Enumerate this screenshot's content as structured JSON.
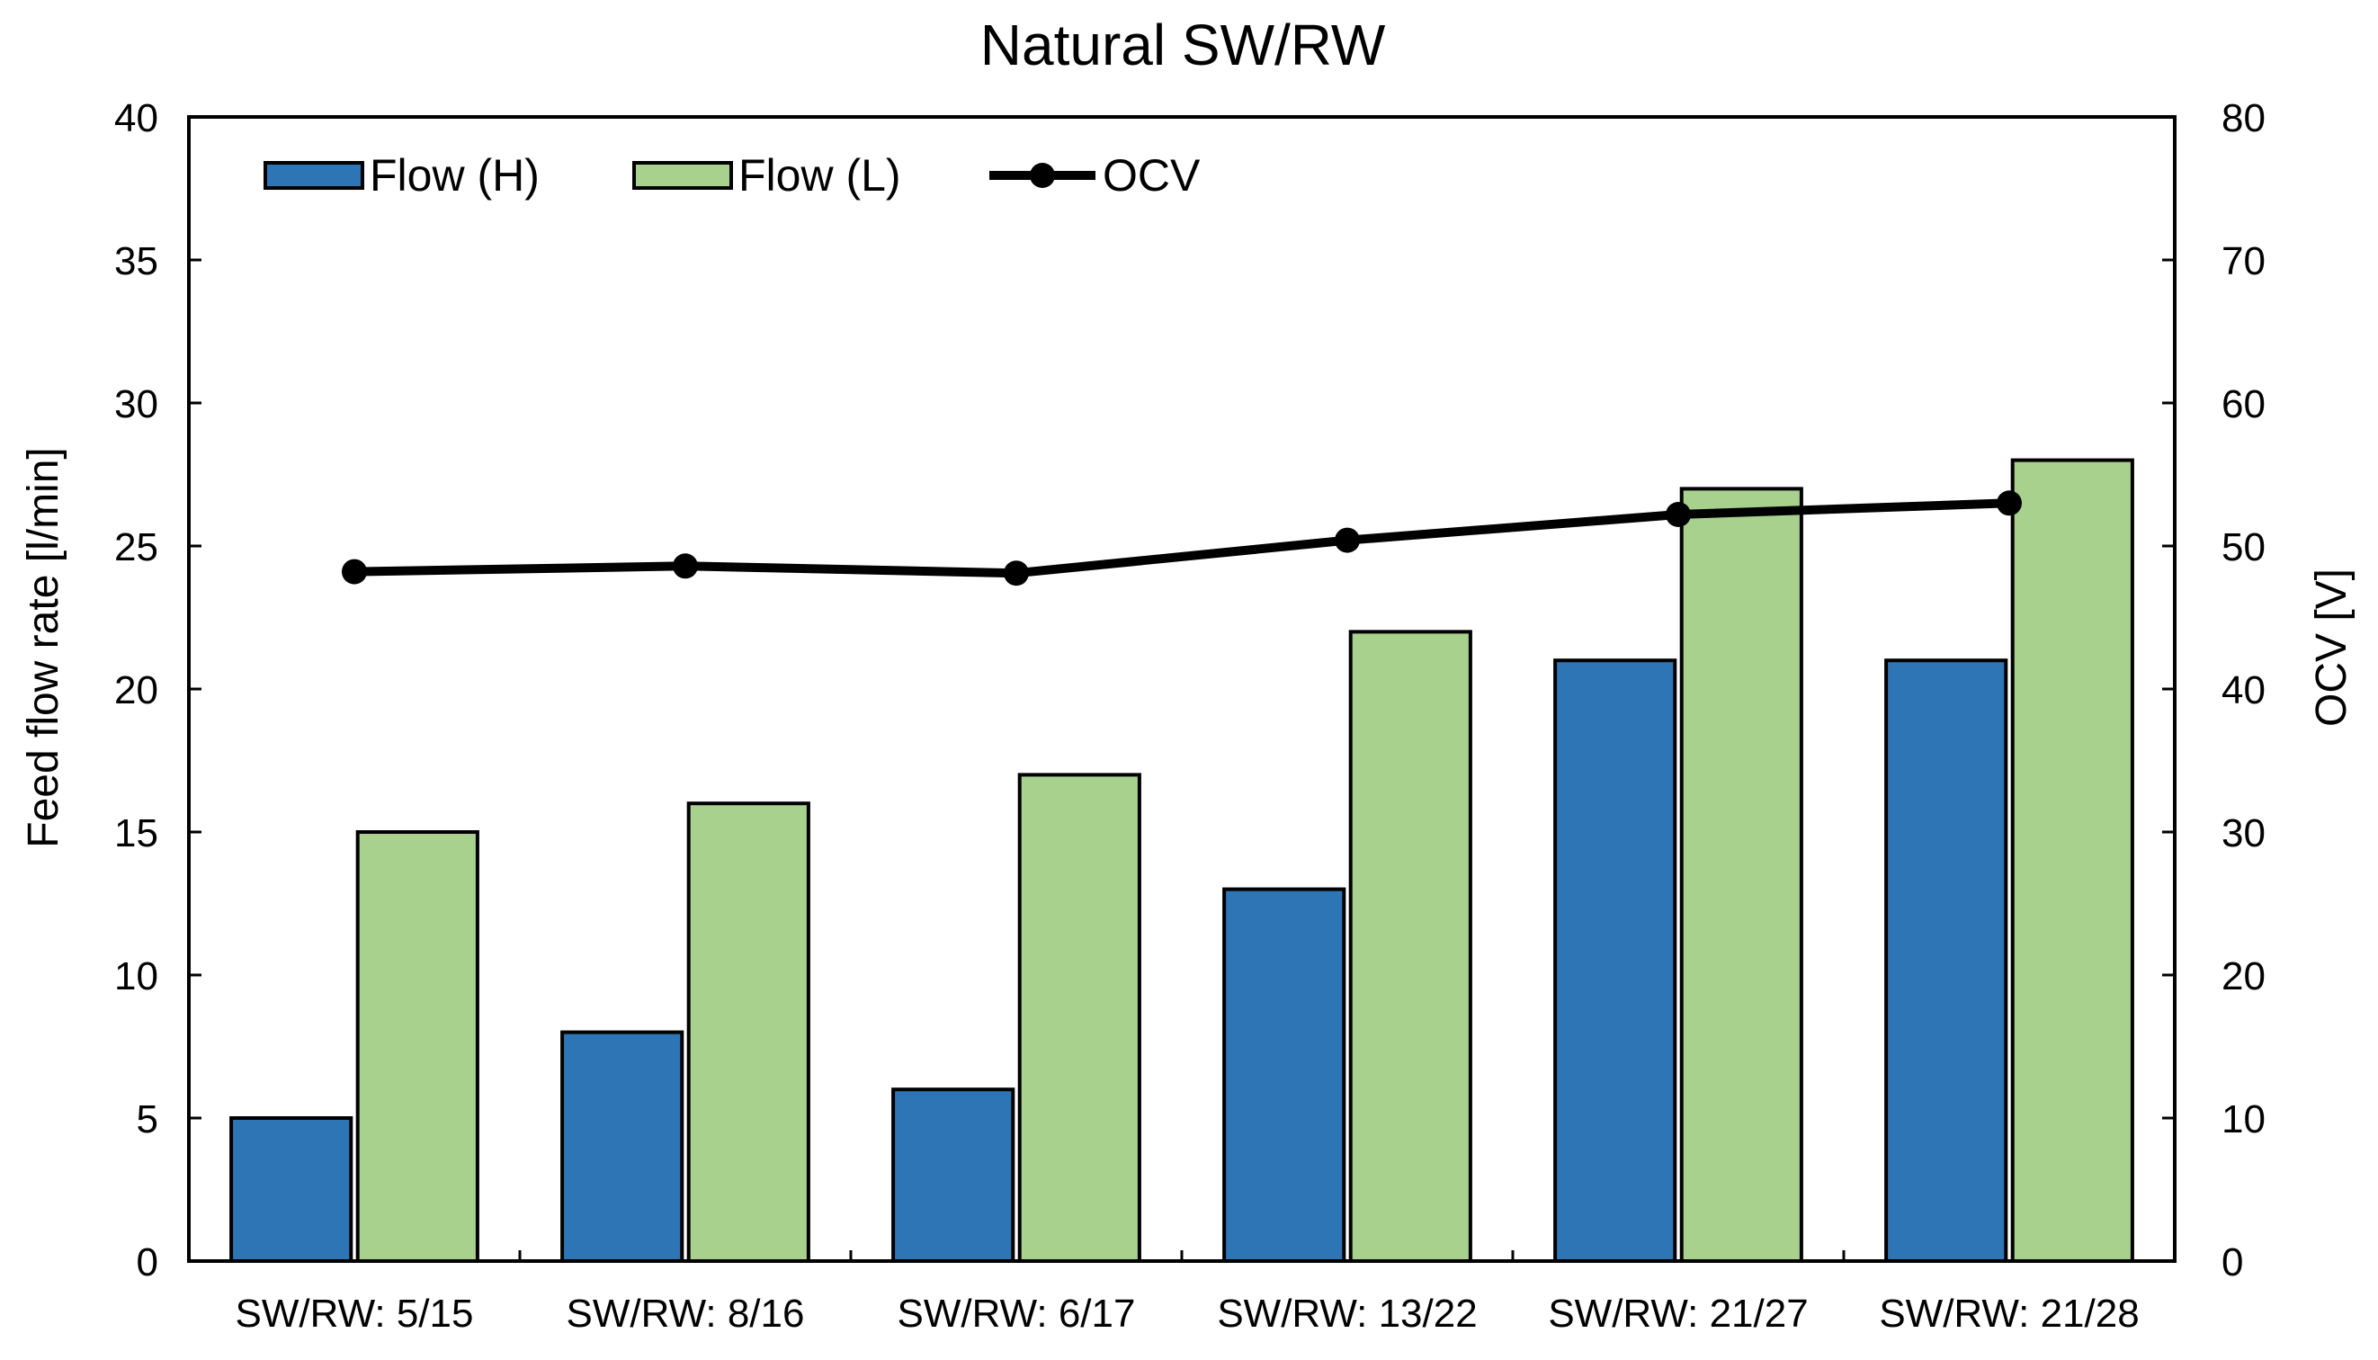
{
  "chart_data": {
    "type": "bar",
    "title": "Natural SW/RW",
    "categories": [
      "SW/RW: 5/15",
      "SW/RW: 8/16",
      "SW/RW: 6/17",
      "SW/RW: 13/22",
      "SW/RW: 21/27",
      "SW/RW: 21/28"
    ],
    "series": [
      {
        "name": "Flow (H)",
        "type": "bar",
        "axis": "left",
        "color": "#2E75B6",
        "values": [
          5,
          8,
          6,
          13,
          21,
          21
        ]
      },
      {
        "name": "Flow (L)",
        "type": "bar",
        "axis": "left",
        "color": "#A9D18E",
        "values": [
          15,
          16,
          17,
          22,
          27,
          28
        ]
      },
      {
        "name": "OCV",
        "type": "line",
        "axis": "right",
        "color": "#000000",
        "marker": "circle",
        "values": [
          48.2,
          48.6,
          48.1,
          50.4,
          52.2,
          53.0
        ]
      }
    ],
    "ylabel": "Feed flow rate [l/min]",
    "ylim": [
      0,
      40
    ],
    "yticks": [
      0,
      5,
      10,
      15,
      20,
      25,
      30,
      35,
      40
    ],
    "y2label": "OCV [V]",
    "y2lim": [
      0,
      80
    ],
    "y2ticks": [
      0,
      10,
      20,
      30,
      40,
      50,
      60,
      70,
      80
    ],
    "legend_position": "top-left",
    "grid": false
  }
}
